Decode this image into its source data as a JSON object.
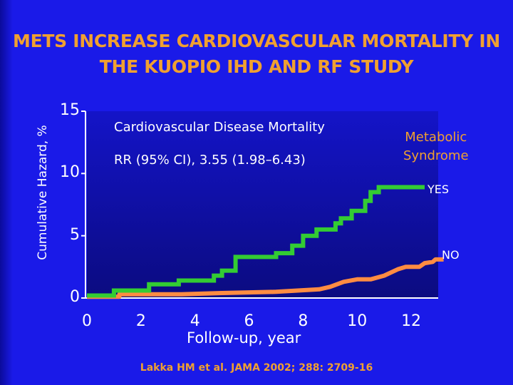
{
  "slide": {
    "title_line1": "METS INCREASE CARDIOVASCULAR MORTALITY IN",
    "title_line2": "THE KUOPIO IHD AND RF STUDY",
    "citation": "Lakka HM et al. JAMA 2002; 288: 2709-16"
  },
  "chart_data": {
    "type": "line",
    "title": "Cardiovascular Disease Mortality",
    "annotation": "RR (95% CI), 3.55 (1.98–6.43)",
    "xlabel": "Follow-up, year",
    "ylabel": "Cumulative Hazard, %",
    "xlim": [
      0,
      13
    ],
    "ylim": [
      0,
      15
    ],
    "xticks": [
      0,
      2,
      4,
      6,
      8,
      10,
      12
    ],
    "yticks": [
      0,
      5,
      10,
      15
    ],
    "legend_title": [
      "Metabolic",
      "Syndrome"
    ],
    "colors": {
      "YES": "#33cc33",
      "NO": "#ff8c42",
      "plot_bg_top": "#1414c8",
      "plot_bg_bottom": "#0b0b80"
    },
    "series": [
      {
        "name": "YES",
        "points": [
          [
            0,
            0.2
          ],
          [
            1.0,
            0.2
          ],
          [
            1.0,
            0.6
          ],
          [
            2.3,
            0.6
          ],
          [
            2.3,
            1.1
          ],
          [
            3.4,
            1.1
          ],
          [
            3.4,
            1.4
          ],
          [
            4.7,
            1.4
          ],
          [
            4.7,
            1.8
          ],
          [
            5.0,
            1.8
          ],
          [
            5.0,
            2.2
          ],
          [
            5.5,
            2.2
          ],
          [
            5.5,
            3.3
          ],
          [
            7.0,
            3.3
          ],
          [
            7.0,
            3.6
          ],
          [
            7.6,
            3.6
          ],
          [
            7.6,
            4.2
          ],
          [
            8.0,
            4.2
          ],
          [
            8.0,
            5.0
          ],
          [
            8.5,
            5.0
          ],
          [
            8.5,
            5.5
          ],
          [
            9.2,
            5.5
          ],
          [
            9.2,
            6.0
          ],
          [
            9.4,
            6.0
          ],
          [
            9.4,
            6.4
          ],
          [
            9.8,
            6.4
          ],
          [
            9.8,
            7.0
          ],
          [
            10.3,
            7.0
          ],
          [
            10.3,
            7.8
          ],
          [
            10.5,
            7.8
          ],
          [
            10.5,
            8.5
          ],
          [
            10.8,
            8.5
          ],
          [
            10.8,
            8.9
          ],
          [
            12.5,
            8.9
          ]
        ]
      },
      {
        "name": "NO",
        "points": [
          [
            0,
            0.1
          ],
          [
            1.2,
            0.1
          ],
          [
            1.2,
            0.3
          ],
          [
            3.5,
            0.3
          ],
          [
            5.0,
            0.4
          ],
          [
            7.0,
            0.5
          ],
          [
            7.8,
            0.6
          ],
          [
            8.6,
            0.7
          ],
          [
            9.0,
            0.9
          ],
          [
            9.5,
            1.3
          ],
          [
            10.0,
            1.5
          ],
          [
            10.5,
            1.5
          ],
          [
            11.0,
            1.8
          ],
          [
            11.5,
            2.3
          ],
          [
            11.8,
            2.5
          ],
          [
            12.3,
            2.5
          ],
          [
            12.5,
            2.8
          ],
          [
            12.8,
            2.9
          ],
          [
            12.9,
            3.1
          ],
          [
            13.2,
            3.1
          ]
        ]
      }
    ]
  }
}
